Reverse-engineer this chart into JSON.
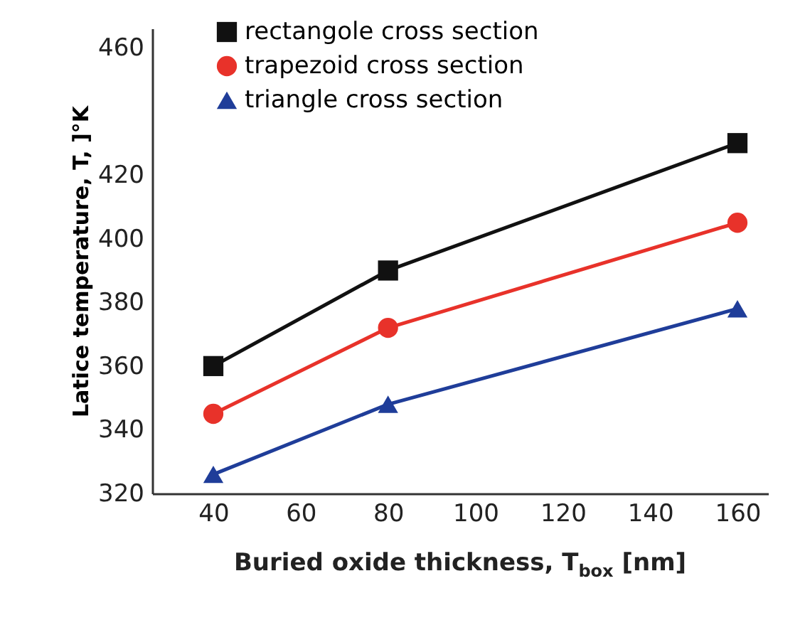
{
  "chart_data": {
    "type": "line",
    "xlabel": "Buried oxide thickness, T$_{box}$ [nm]",
    "ylabel": "Latice temperature, T, ]°K",
    "xlim": [
      26,
      167
    ],
    "xticks": [
      40,
      60,
      80,
      100,
      120,
      140,
      160
    ],
    "ylim": [
      320,
      466
    ],
    "yticks": [
      320,
      340,
      360,
      380,
      400,
      420,
      460
    ],
    "grid": false,
    "legend": "top left",
    "series": [
      {
        "name": "rectangole cross section",
        "color": "#111111",
        "marker": "square",
        "x": [
          40,
          80,
          160
        ],
        "values": [
          360,
          390,
          430
        ]
      },
      {
        "name": "trapezoid cross section",
        "color": "#e8322a",
        "marker": "circle",
        "x": [
          40,
          80,
          160
        ],
        "values": [
          345,
          372,
          405
        ]
      },
      {
        "name": "triangle cross section",
        "color": "#1f3d99",
        "marker": "triangle",
        "x": [
          40,
          80,
          160
        ],
        "values": [
          326,
          348,
          378
        ]
      }
    ]
  }
}
